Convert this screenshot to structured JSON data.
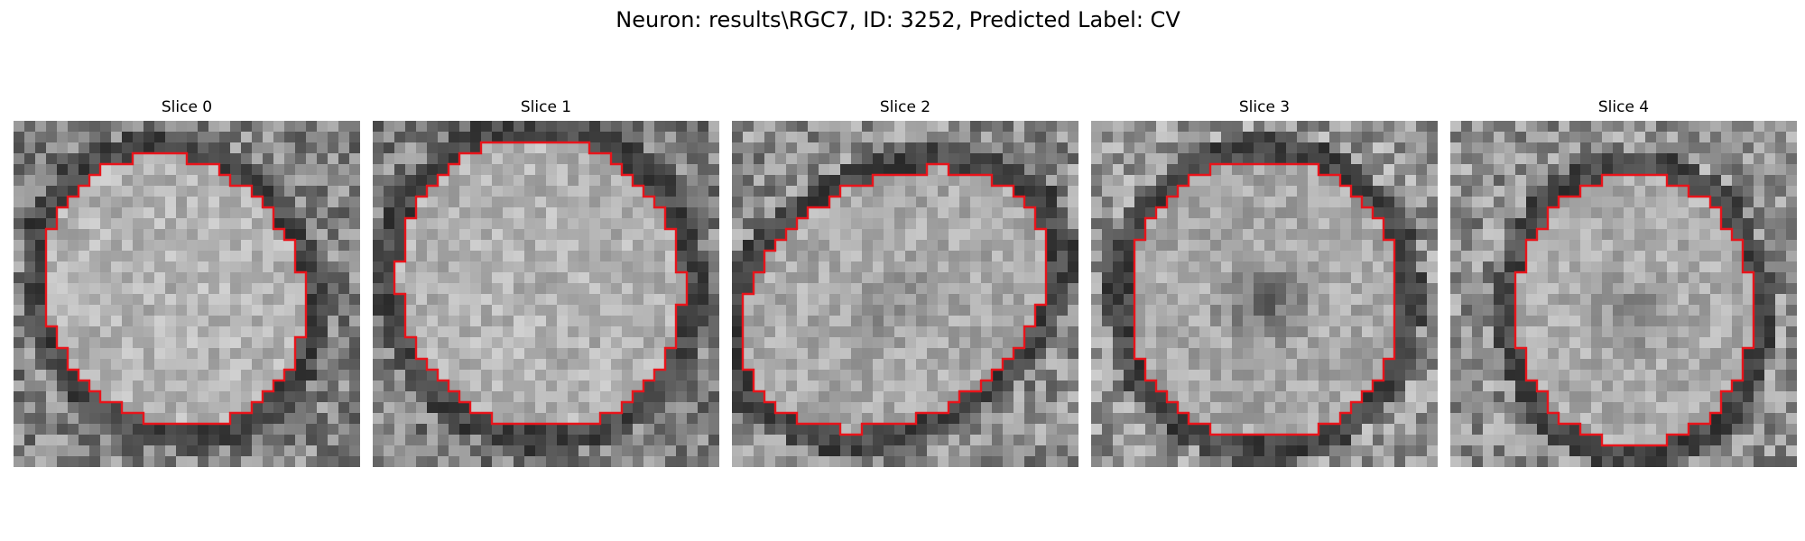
{
  "title": "Neuron: results\\RGC7, ID: 3252, Predicted Label: CV",
  "slices": [
    {
      "label": "Slice 0"
    },
    {
      "label": "Slice 1"
    },
    {
      "label": "Slice 2"
    },
    {
      "label": "Slice 3"
    },
    {
      "label": "Slice 4"
    }
  ],
  "colors": {
    "contour": "#e8141b",
    "background": "#ffffff"
  }
}
